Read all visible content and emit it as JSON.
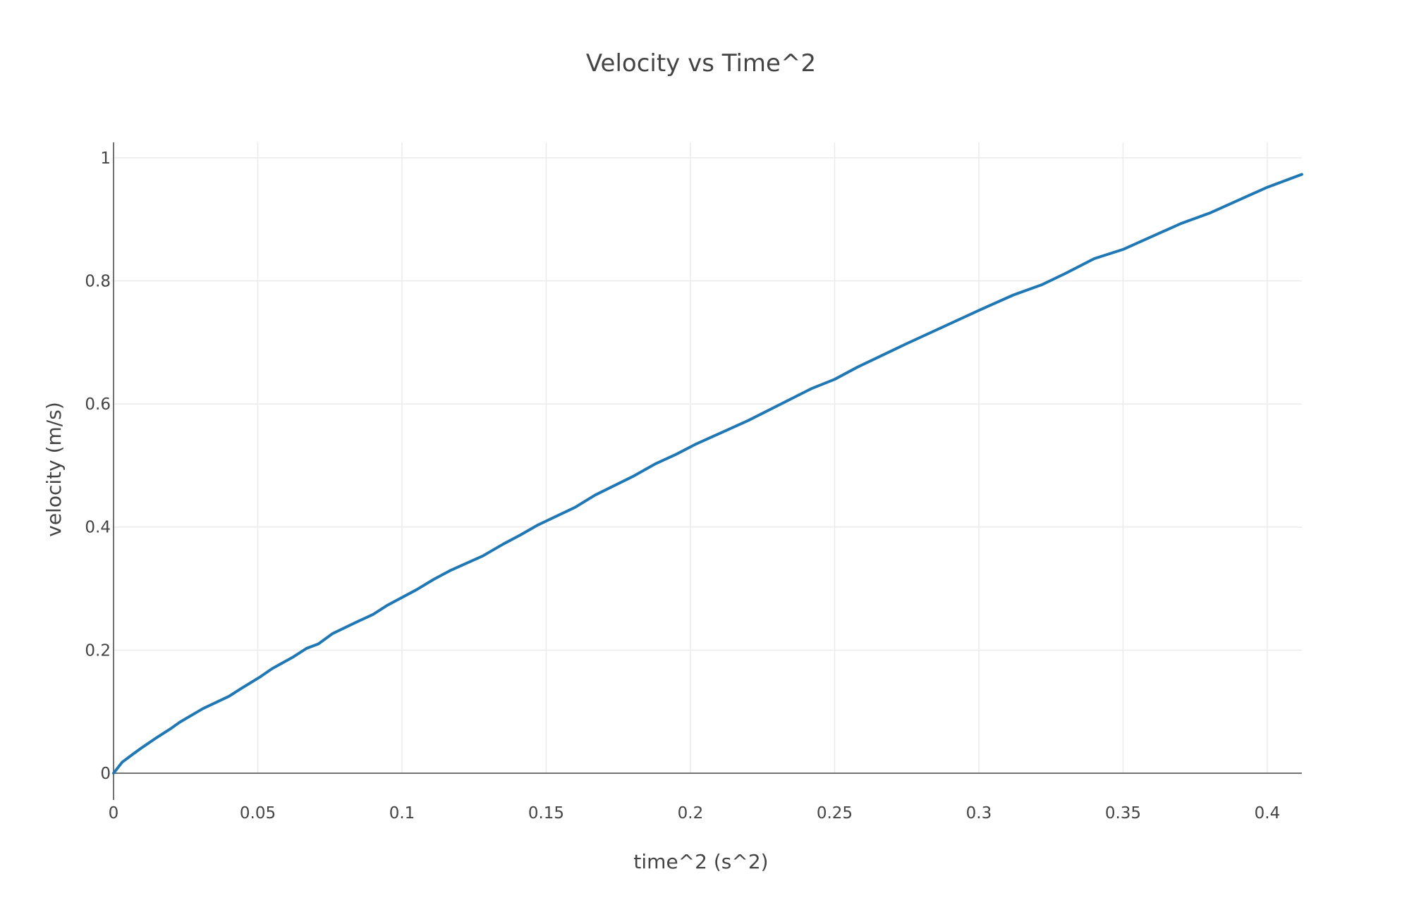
{
  "chart_data": {
    "type": "line",
    "title": "Velocity vs Time^2",
    "xlabel": "time^2 (s^2)",
    "ylabel": "velocity (m/s)",
    "xlim": [
      0,
      0.412
    ],
    "ylim": [
      0,
      1.025
    ],
    "grid": true,
    "x_ticks": [
      0,
      0.05,
      0.1,
      0.15,
      0.2,
      0.25,
      0.3,
      0.35,
      0.4
    ],
    "x_tick_labels": [
      "0",
      "0.05",
      "0.1",
      "0.15",
      "0.2",
      "0.25",
      "0.3",
      "0.35",
      "0.4"
    ],
    "y_ticks": [
      0,
      0.2,
      0.4,
      0.6,
      0.8,
      1
    ],
    "y_tick_labels": [
      "0",
      "0.2",
      "0.4",
      "0.6",
      "0.8",
      "1"
    ],
    "colors": {
      "line": "#1f77b4",
      "grid": "#ebebeb",
      "axis": "#444444",
      "text": "#444444"
    },
    "series": [
      {
        "x": [
          0,
          0.003,
          0.007,
          0.01,
          0.015,
          0.02,
          0.023,
          0.031,
          0.04,
          0.044,
          0.051,
          0.055,
          0.062,
          0.067,
          0.071,
          0.076,
          0.084,
          0.09,
          0.095,
          0.105,
          0.111,
          0.117,
          0.128,
          0.135,
          0.141,
          0.147,
          0.16,
          0.167,
          0.18,
          0.188,
          0.195,
          0.202,
          0.22,
          0.242,
          0.25,
          0.258,
          0.275,
          0.3,
          0.312,
          0.322,
          0.33,
          0.34,
          0.35,
          0.37,
          0.38,
          0.4,
          0.412
        ],
        "y": [
          0,
          0.018,
          0.032,
          0.042,
          0.058,
          0.073,
          0.083,
          0.105,
          0.125,
          0.137,
          0.157,
          0.17,
          0.188,
          0.203,
          0.21,
          0.227,
          0.245,
          0.258,
          0.273,
          0.298,
          0.315,
          0.33,
          0.353,
          0.372,
          0.387,
          0.403,
          0.432,
          0.452,
          0.482,
          0.503,
          0.518,
          0.535,
          0.573,
          0.625,
          0.64,
          0.66,
          0.698,
          0.752,
          0.777,
          0.794,
          0.812,
          0.836,
          0.851,
          0.893,
          0.91,
          0.952,
          0.973
        ]
      }
    ]
  }
}
